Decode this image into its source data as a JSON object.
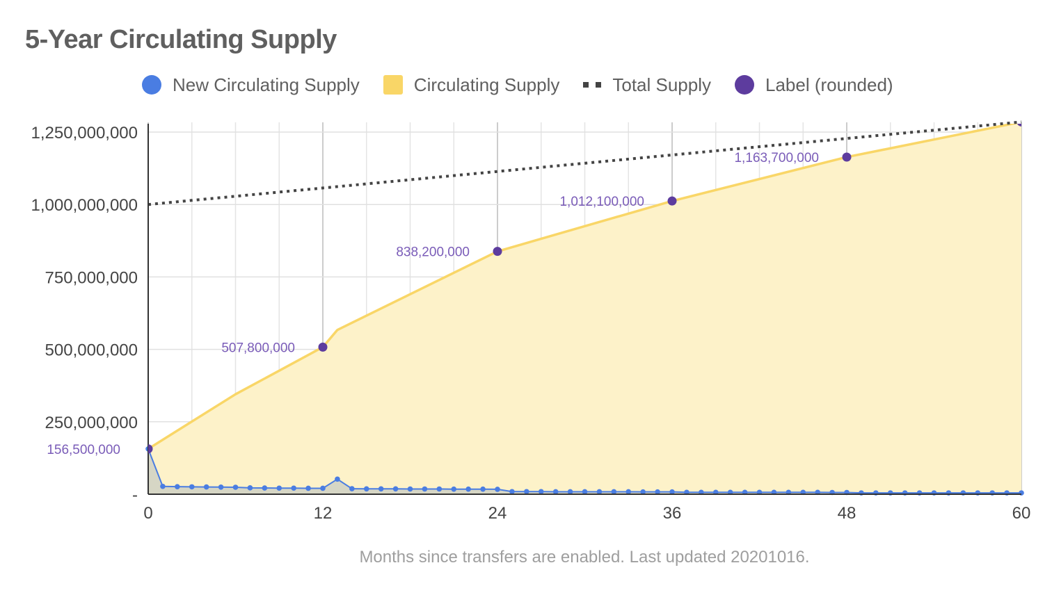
{
  "chart_data": {
    "type": "line",
    "title": "5-Year Circulating Supply",
    "xlabel": "Months since transfers are enabled. Last updated 20201016.",
    "ylabel": "",
    "xlim": [
      0,
      60
    ],
    "ylim": [
      0,
      1250000000
    ],
    "x_ticks": [
      0,
      12,
      24,
      36,
      48,
      60
    ],
    "x_tick_labels": [
      "0",
      "12",
      "24",
      "36",
      "48",
      "60"
    ],
    "y_ticks": [
      0,
      250000000,
      500000000,
      750000000,
      1000000000,
      1250000000
    ],
    "y_tick_labels": [
      "-",
      "250,000,000",
      "500,000,000",
      "750,000,000",
      "1,000,000,000",
      "1,250,000,000"
    ],
    "grid": true,
    "legend_position": "top",
    "legend": [
      "New Circulating Supply",
      "Circulating Supply",
      "Total Supply",
      "Label (rounded)"
    ],
    "series": [
      {
        "name": "New Circulating Supply",
        "type": "line-area",
        "color": "#4a7de2",
        "fill": "#d1d3c4",
        "x": [
          0,
          1,
          2,
          3,
          4,
          5,
          6,
          7,
          8,
          9,
          10,
          11,
          12,
          13,
          14,
          15,
          16,
          17,
          18,
          19,
          20,
          21,
          22,
          23,
          24,
          25,
          26,
          27,
          28,
          29,
          30,
          31,
          32,
          33,
          34,
          35,
          36,
          37,
          38,
          39,
          40,
          41,
          42,
          43,
          44,
          45,
          46,
          47,
          48,
          49,
          50,
          51,
          52,
          53,
          54,
          55,
          56,
          57,
          58,
          59,
          60
        ],
        "y": [
          156500000,
          27000000,
          26000000,
          25500000,
          25000000,
          24500000,
          24000000,
          22000000,
          21500000,
          21000000,
          21000000,
          20500000,
          20500000,
          52000000,
          19000000,
          18500000,
          18500000,
          18500000,
          18000000,
          18000000,
          18000000,
          17500000,
          17500000,
          17500000,
          17000000,
          9000000,
          9000000,
          9000000,
          8500000,
          8500000,
          8500000,
          8500000,
          8500000,
          8500000,
          8000000,
          8000000,
          8000000,
          6500000,
          6500000,
          6500000,
          6500000,
          6500000,
          6500000,
          6500000,
          6500000,
          6500000,
          6500000,
          6000000,
          6000000,
          4500000,
          4500000,
          4500000,
          4500000,
          4500000,
          4500000,
          4500000,
          4500000,
          4500000,
          4500000,
          4500000,
          4500000
        ]
      },
      {
        "name": "Circulating Supply",
        "type": "area",
        "color": "#f9d667",
        "fill": "#fdf2c9",
        "x": [
          0,
          6,
          12,
          13,
          24,
          36,
          48,
          60
        ],
        "y": [
          156500000,
          345000000,
          507800000,
          567000000,
          838200000,
          1012100000,
          1163700000,
          1285000000
        ]
      },
      {
        "name": "Total Supply",
        "type": "dotted-line",
        "color": "#444444",
        "x": [
          0,
          60
        ],
        "y": [
          1000000000,
          1285000000
        ]
      },
      {
        "name": "Label (rounded)",
        "type": "scatter",
        "color": "#5d3c9e",
        "label_color": "#7a5cb8",
        "x": [
          0,
          12,
          24,
          36,
          48,
          60
        ],
        "y": [
          156500000,
          507800000,
          838200000,
          1012100000,
          1163700000,
          1285000000
        ],
        "labels": [
          "156,500,000",
          "507,800,000",
          "838,200,000",
          "1,012,100,000",
          "1,163,700,000",
          ""
        ]
      }
    ]
  }
}
